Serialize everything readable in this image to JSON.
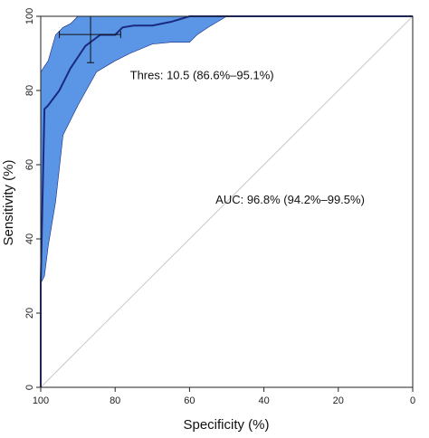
{
  "chart_data": {
    "type": "line",
    "xlabel": "Specificity (%)",
    "ylabel": "Sensitivity (%)",
    "xlim": [
      100,
      0
    ],
    "ylim": [
      0,
      100
    ],
    "x_reversed": true,
    "xticks": [
      100,
      80,
      60,
      40,
      20,
      0
    ],
    "yticks": [
      0,
      20,
      40,
      60,
      80,
      100
    ],
    "grid": false,
    "colors": {
      "roc_line": "#1a2a80",
      "ci_fill": "#5b96e6",
      "ci_edge": "#1a2a80",
      "diagonal": "#c8c8c8"
    },
    "series": [
      {
        "values_spec": [
          100,
          100,
          99,
          98,
          95,
          92,
          88,
          84,
          80,
          78,
          75,
          70,
          65,
          60,
          55,
          50,
          45,
          40,
          30,
          20,
          10,
          0
        ],
        "values_sens": [
          0,
          28,
          75,
          76,
          80,
          86,
          92,
          95,
          95,
          97,
          97.5,
          97.5,
          98.5,
          100,
          100,
          100,
          100,
          100,
          100,
          100,
          100,
          100
        ]
      }
    ],
    "ci_band": {
      "upper_spec": [
        100,
        100,
        98,
        96,
        94,
        92,
        90,
        100,
        0
      ],
      "upper_sens": [
        28,
        85,
        88,
        95,
        97,
        98,
        100,
        100,
        100
      ],
      "lower_spec": [
        0,
        50,
        55,
        58,
        60,
        65,
        70,
        76,
        80,
        85,
        90,
        94,
        96,
        98,
        99,
        100
      ],
      "lower_sens": [
        100,
        100,
        97,
        95,
        93,
        93,
        92.5,
        90,
        88,
        85,
        76,
        68,
        50,
        38,
        30,
        28
      ]
    },
    "threshold_point": {
      "spec": 86.6,
      "sens": 95.1,
      "spec_ci": [
        78.5,
        95
      ],
      "sens_ci": [
        87.5,
        100
      ]
    },
    "annotations": [
      {
        "text": "Thres: 10.5 (86.6%–95.1%)",
        "spec": 76,
        "sens": 83
      },
      {
        "text": "AUC: 96.8% (94.2%–99.5%)",
        "spec": 53,
        "sens": 49.5
      }
    ]
  }
}
